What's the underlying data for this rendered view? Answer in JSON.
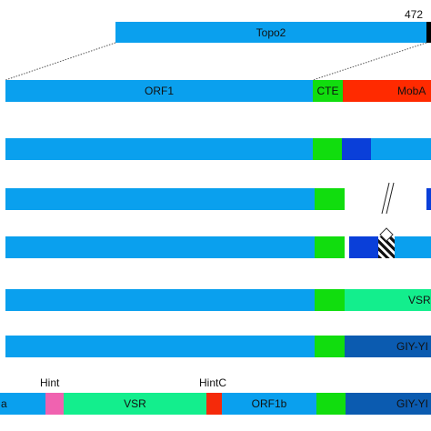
{
  "colors": {
    "orf_blue": "#0aa0ee",
    "cte_green": "#11dd0e",
    "moba_red": "#ff2a00",
    "dark_blue": "#0a3fd9",
    "vsr_mint": "#13ee8d",
    "giy_navy": "#0b5bb0",
    "hint_pink": "#f062b0",
    "hintc_red": "#f52a0a",
    "terminus_black": "#000000"
  },
  "topo2": {
    "label": "Topo2",
    "number": "472"
  },
  "row1": {
    "orf1": "ORF1",
    "cte": "CTE",
    "moba": "MobA"
  },
  "row6": {
    "vsr": "VSR"
  },
  "row7": {
    "giy": "GIY-YI"
  },
  "row8": {
    "hint": "Hint",
    "hintc": "HintC",
    "left_partial": "a",
    "vsr": "VSR",
    "orf1b": "ORF1b",
    "giy": "GIY-YI"
  }
}
